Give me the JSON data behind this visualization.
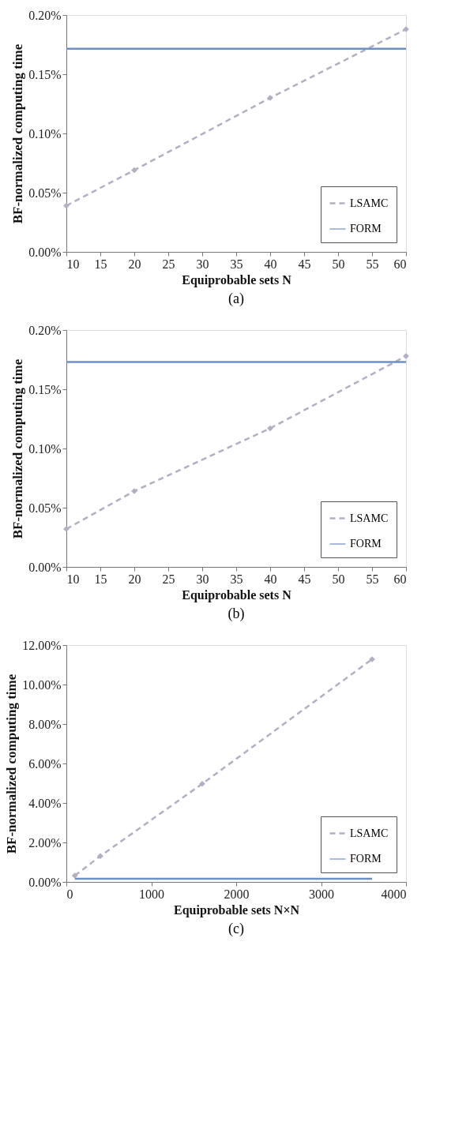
{
  "chart_data": [
    {
      "type": "line",
      "xlabel": "Equiprobable sets N",
      "ylabel": "BF-normalized computing time",
      "annotations": [
        "(a)"
      ],
      "legend": "bottom right",
      "grid": false,
      "xlim": [
        10,
        60
      ],
      "xticks": [
        10,
        15,
        20,
        25,
        30,
        35,
        40,
        45,
        50,
        55,
        60
      ],
      "ylim": [
        0,
        0.2
      ],
      "yticks": [
        {
          "value": 0,
          "label": "0.00%"
        },
        {
          "value": 0.05,
          "label": "0.05%"
        },
        {
          "value": 0.1,
          "label": "0.10%"
        },
        {
          "value": 0.15,
          "label": "0.15%"
        },
        {
          "value": 0.2,
          "label": "0.20%"
        }
      ],
      "series": [
        {
          "name": "LSAMC",
          "color": "#b3aec2",
          "marker": "diamond",
          "line_style": "dashed",
          "x": [
            10,
            20,
            40,
            60
          ],
          "values": [
            0.039,
            0.069,
            0.13,
            0.188
          ]
        },
        {
          "name": "FORM",
          "color": "#6f8fc2",
          "marker": "none",
          "line_style": "solid",
          "x": [
            10,
            60
          ],
          "values": [
            0.1715,
            0.1715
          ]
        }
      ]
    },
    {
      "type": "line",
      "xlabel": "Equiprobable sets N",
      "ylabel": "BF-normalized computing time",
      "annotations": [
        "(b)"
      ],
      "legend": "bottom right",
      "grid": false,
      "xlim": [
        10,
        60
      ],
      "xticks": [
        10,
        15,
        20,
        25,
        30,
        35,
        40,
        45,
        50,
        55,
        60
      ],
      "ylim": [
        0,
        0.2
      ],
      "yticks": [
        {
          "value": 0,
          "label": "0.00%"
        },
        {
          "value": 0.05,
          "label": "0.05%"
        },
        {
          "value": 0.1,
          "label": "0.10%"
        },
        {
          "value": 0.15,
          "label": "0.15%"
        },
        {
          "value": 0.2,
          "label": "0.20%"
        }
      ],
      "series": [
        {
          "name": "LSAMC",
          "color": "#b3aec2",
          "marker": "diamond",
          "line_style": "dashed",
          "x": [
            10,
            20,
            40,
            60
          ],
          "values": [
            0.032,
            0.064,
            0.117,
            0.178
          ]
        },
        {
          "name": "FORM",
          "color": "#6f8fc2",
          "marker": "none",
          "line_style": "solid",
          "x": [
            10,
            60
          ],
          "values": [
            0.173,
            0.173
          ]
        }
      ]
    },
    {
      "type": "line",
      "xlabel": "Equiprobable sets N×N",
      "ylabel": "BF-normalized computing time",
      "annotations": [
        "(c)"
      ],
      "legend": "bottom right",
      "grid": false,
      "xlim": [
        0,
        4000
      ],
      "xticks": [
        0,
        1000,
        2000,
        3000,
        4000
      ],
      "ylim": [
        0,
        12
      ],
      "yticks": [
        {
          "value": 0,
          "label": "0.00%"
        },
        {
          "value": 2,
          "label": "2.00%"
        },
        {
          "value": 4,
          "label": "4.00%"
        },
        {
          "value": 6,
          "label": "6.00%"
        },
        {
          "value": 8,
          "label": "8.00%"
        },
        {
          "value": 10,
          "label": "10.00%"
        },
        {
          "value": 12,
          "label": "12.00%"
        }
      ],
      "series": [
        {
          "name": "LSAMC",
          "color": "#b3aec2",
          "marker": "diamond",
          "line_style": "dashed",
          "x": [
            100,
            400,
            1600,
            3600
          ],
          "values": [
            0.32,
            1.31,
            4.97,
            11.28
          ]
        },
        {
          "name": "FORM",
          "color": "#6f8fc2",
          "marker": "none",
          "line_style": "solid",
          "x": [
            100,
            3600
          ],
          "values": [
            0.16,
            0.16
          ]
        }
      ]
    }
  ]
}
